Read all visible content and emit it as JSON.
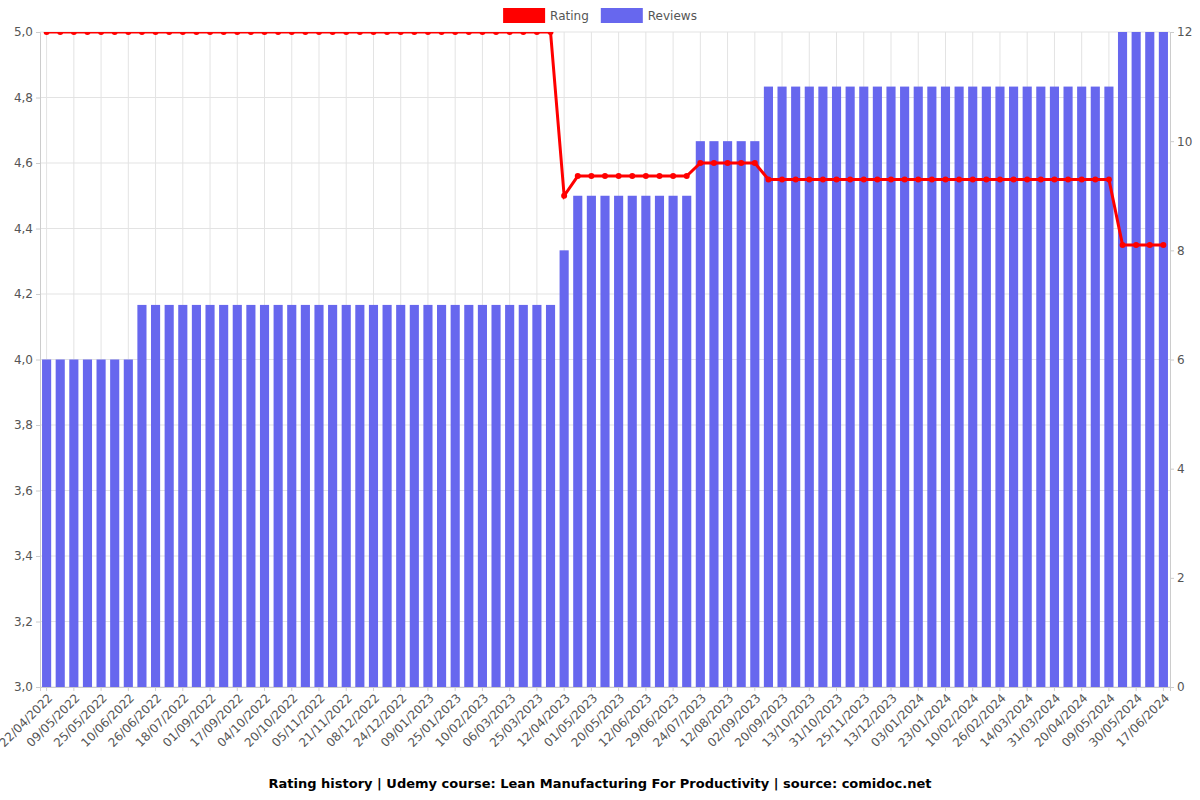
{
  "chart_data": {
    "type": "combo",
    "title": "Rating history | Udemy course: Lean Manufacturing For Productivity | source: comidoc.net",
    "categories": [
      "22/04/2022",
      null,
      "09/05/2022",
      null,
      "25/05/2022",
      null,
      "10/06/2022",
      null,
      "26/06/2022",
      null,
      "18/07/2022",
      null,
      "01/09/2022",
      null,
      "17/09/2022",
      null,
      "04/10/2022",
      null,
      "20/10/2022",
      null,
      "05/11/2022",
      null,
      "21/11/2022",
      null,
      "08/12/2022",
      null,
      "24/12/2022",
      null,
      "09/01/2023",
      null,
      "25/01/2023",
      null,
      "10/02/2023",
      null,
      "06/03/2023",
      null,
      "25/03/2023",
      null,
      "12/04/2023",
      null,
      "01/05/2023",
      null,
      "20/05/2023",
      null,
      "12/06/2023",
      null,
      "29/06/2023",
      null,
      "24/07/2023",
      null,
      "12/08/2023",
      null,
      "02/09/2023",
      null,
      "20/09/2023",
      null,
      "13/10/2023",
      null,
      "31/10/2023",
      null,
      "25/11/2023",
      null,
      "13/12/2023",
      null,
      "03/01/2024",
      null,
      "23/01/2024",
      null,
      "10/02/2024",
      null,
      "26/02/2024",
      null,
      "14/03/2024",
      null,
      "31/03/2024",
      null,
      "20/04/2024",
      null,
      "09/05/2024",
      null,
      "30/05/2024",
      null,
      "17/06/2024"
    ],
    "series": [
      {
        "name": "Rating",
        "type": "line",
        "color": "#ff0000",
        "marker": "circle",
        "values": [
          5,
          5,
          5,
          5,
          5,
          5,
          5,
          5,
          5,
          5,
          5,
          5,
          5,
          5,
          5,
          5,
          5,
          5,
          5,
          5,
          5,
          5,
          5,
          5,
          5,
          5,
          5,
          5,
          5,
          5,
          5,
          5,
          5,
          5,
          5,
          5,
          5,
          5,
          4.5,
          4.56,
          4.56,
          4.56,
          4.56,
          4.56,
          4.56,
          4.56,
          4.56,
          4.56,
          4.6,
          4.6,
          4.6,
          4.6,
          4.6,
          4.55,
          4.55,
          4.55,
          4.55,
          4.55,
          4.55,
          4.55,
          4.55,
          4.55,
          4.55,
          4.55,
          4.55,
          4.55,
          4.55,
          4.55,
          4.55,
          4.55,
          4.55,
          4.55,
          4.55,
          4.55,
          4.55,
          4.55,
          4.55,
          4.55,
          4.55,
          4.35,
          4.35,
          4.35,
          4.35
        ]
      },
      {
        "name": "Reviews",
        "type": "bar",
        "color": "#6767ee",
        "axis": "y2",
        "values": [
          6,
          6,
          6,
          6,
          6,
          6,
          6,
          7,
          7,
          7,
          7,
          7,
          7,
          7,
          7,
          7,
          7,
          7,
          7,
          7,
          7,
          7,
          7,
          7,
          7,
          7,
          7,
          7,
          7,
          7,
          7,
          7,
          7,
          7,
          7,
          7,
          7,
          7,
          8,
          9,
          9,
          9,
          9,
          9,
          9,
          9,
          9,
          9,
          10,
          10,
          10,
          10,
          10,
          11,
          11,
          11,
          11,
          11,
          11,
          11,
          11,
          11,
          11,
          11,
          11,
          11,
          11,
          11,
          11,
          11,
          11,
          11,
          11,
          11,
          11,
          11,
          11,
          11,
          11,
          12,
          12,
          12,
          12
        ]
      }
    ],
    "ylim": [
      3,
      5
    ],
    "yticks": [
      {
        "value": 3,
        "label": "3,0"
      },
      {
        "value": 3.2,
        "label": "3,2"
      },
      {
        "value": 3.4,
        "label": "3,4"
      },
      {
        "value": 3.6,
        "label": "3,6"
      },
      {
        "value": 3.8,
        "label": "3,8"
      },
      {
        "value": 4,
        "label": "4,0"
      },
      {
        "value": 4.2,
        "label": "4,2"
      },
      {
        "value": 4.4,
        "label": "4,4"
      },
      {
        "value": 4.6,
        "label": "4,6"
      },
      {
        "value": 4.8,
        "label": "4,8"
      },
      {
        "value": 5,
        "label": "5,0"
      }
    ],
    "y2lim": [
      0,
      12
    ],
    "y2ticks": [
      0,
      2,
      4,
      6,
      8,
      10,
      12
    ],
    "grid": true,
    "legend": "top"
  }
}
